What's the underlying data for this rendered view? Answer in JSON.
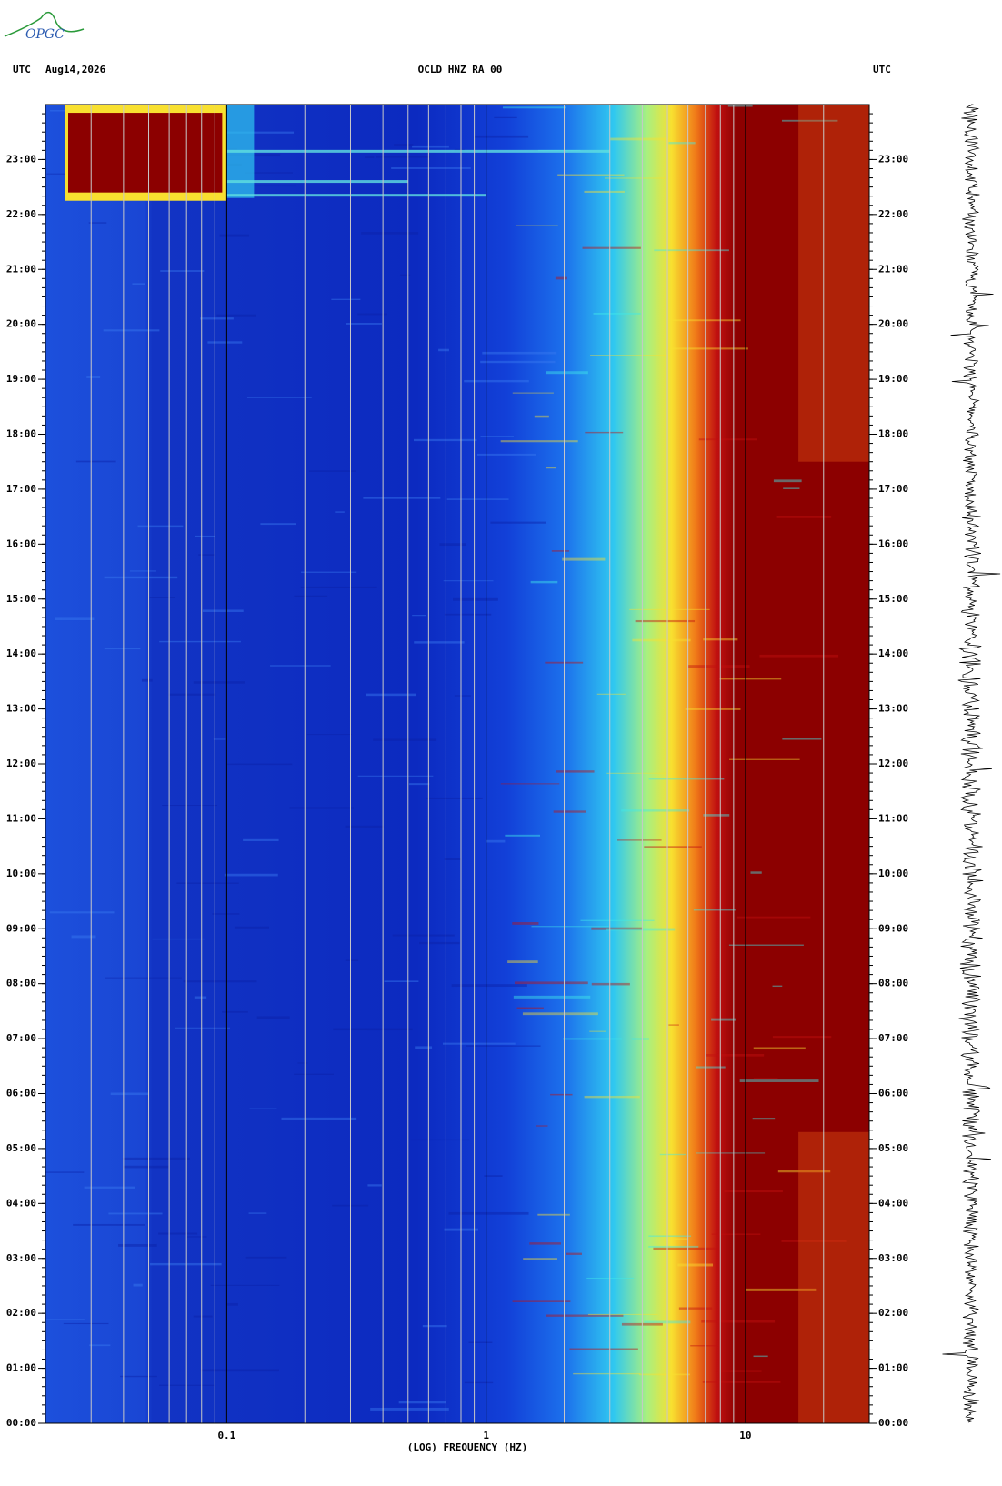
{
  "logo": "OPGC",
  "chart_data": {
    "type": "spectrogram",
    "title": "OCLD HNZ RA 00",
    "date": "Aug14,2026",
    "left_label": "UTC",
    "right_label": "UTC",
    "xlabel": "(LOG) FREQUENCY (HZ)",
    "xscale": "log",
    "xlim": [
      0.02,
      30
    ],
    "xticks": [
      0.1,
      1,
      10
    ],
    "ylim": [
      0,
      24
    ],
    "yticks": [
      {
        "value": 0,
        "label": "00:00"
      },
      {
        "value": 1,
        "label": "01:00"
      },
      {
        "value": 2,
        "label": "02:00"
      },
      {
        "value": 3,
        "label": "03:00"
      },
      {
        "value": 4,
        "label": "04:00"
      },
      {
        "value": 5,
        "label": "05:00"
      },
      {
        "value": 6,
        "label": "06:00"
      },
      {
        "value": 7,
        "label": "07:00"
      },
      {
        "value": 8,
        "label": "08:00"
      },
      {
        "value": 9,
        "label": "09:00"
      },
      {
        "value": 10,
        "label": "10:00"
      },
      {
        "value": 11,
        "label": "11:00"
      },
      {
        "value": 12,
        "label": "12:00"
      },
      {
        "value": 13,
        "label": "13:00"
      },
      {
        "value": 14,
        "label": "14:00"
      },
      {
        "value": 15,
        "label": "15:00"
      },
      {
        "value": 16,
        "label": "16:00"
      },
      {
        "value": 17,
        "label": "17:00"
      },
      {
        "value": 18,
        "label": "18:00"
      },
      {
        "value": 19,
        "label": "19:00"
      },
      {
        "value": 20,
        "label": "20:00"
      },
      {
        "value": 21,
        "label": "21:00"
      },
      {
        "value": 22,
        "label": "22:00"
      },
      {
        "value": 23,
        "label": "23:00"
      }
    ]
  }
}
